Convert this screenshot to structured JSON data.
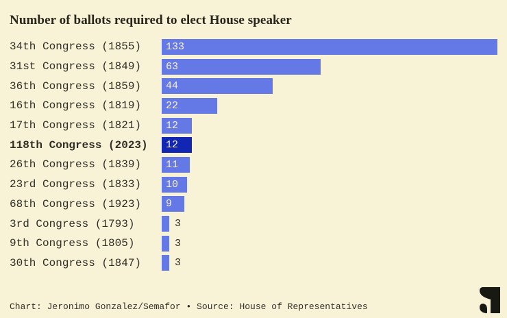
{
  "footer": {
    "credit": "Chart: Jeronimo Gonzalez/Semafor • Source: House of Representatives"
  },
  "logo": {
    "icon": "semafor-s-logo"
  },
  "colors": {
    "background": "#f8f2d7",
    "bar": "#6478e6",
    "bar_highlight": "#1127b4",
    "text": "#2f2f26",
    "title_text": "#26261b",
    "value_text_light": "#f8f2d7",
    "logo": "#191913"
  },
  "chart_data": {
    "type": "bar",
    "orientation": "horizontal",
    "title": "Number of ballots required to elect House speaker",
    "categories": [
      "34th Congress (1855)",
      "31st Congress (1849)",
      "36th Congress (1859)",
      "16th Congress (1819)",
      "17th Congress (1821)",
      "118th Congress (2023)",
      "26th Congress (1839)",
      "23rd Congress (1833)",
      "68th Congress (1923)",
      "3rd Congress (1793)",
      "9th Congress (1805)",
      "30th Congress (1847)"
    ],
    "values": [
      133,
      63,
      44,
      22,
      12,
      12,
      11,
      10,
      9,
      3,
      3,
      3
    ],
    "highlighted_category": "118th Congress (2023)",
    "value_labels_shown": true,
    "value_label_placement": "inside bar at left; outside right of bar when bar too small",
    "xlim": [
      0,
      133
    ],
    "grid": false,
    "legend": false,
    "axis_ticks": false
  }
}
